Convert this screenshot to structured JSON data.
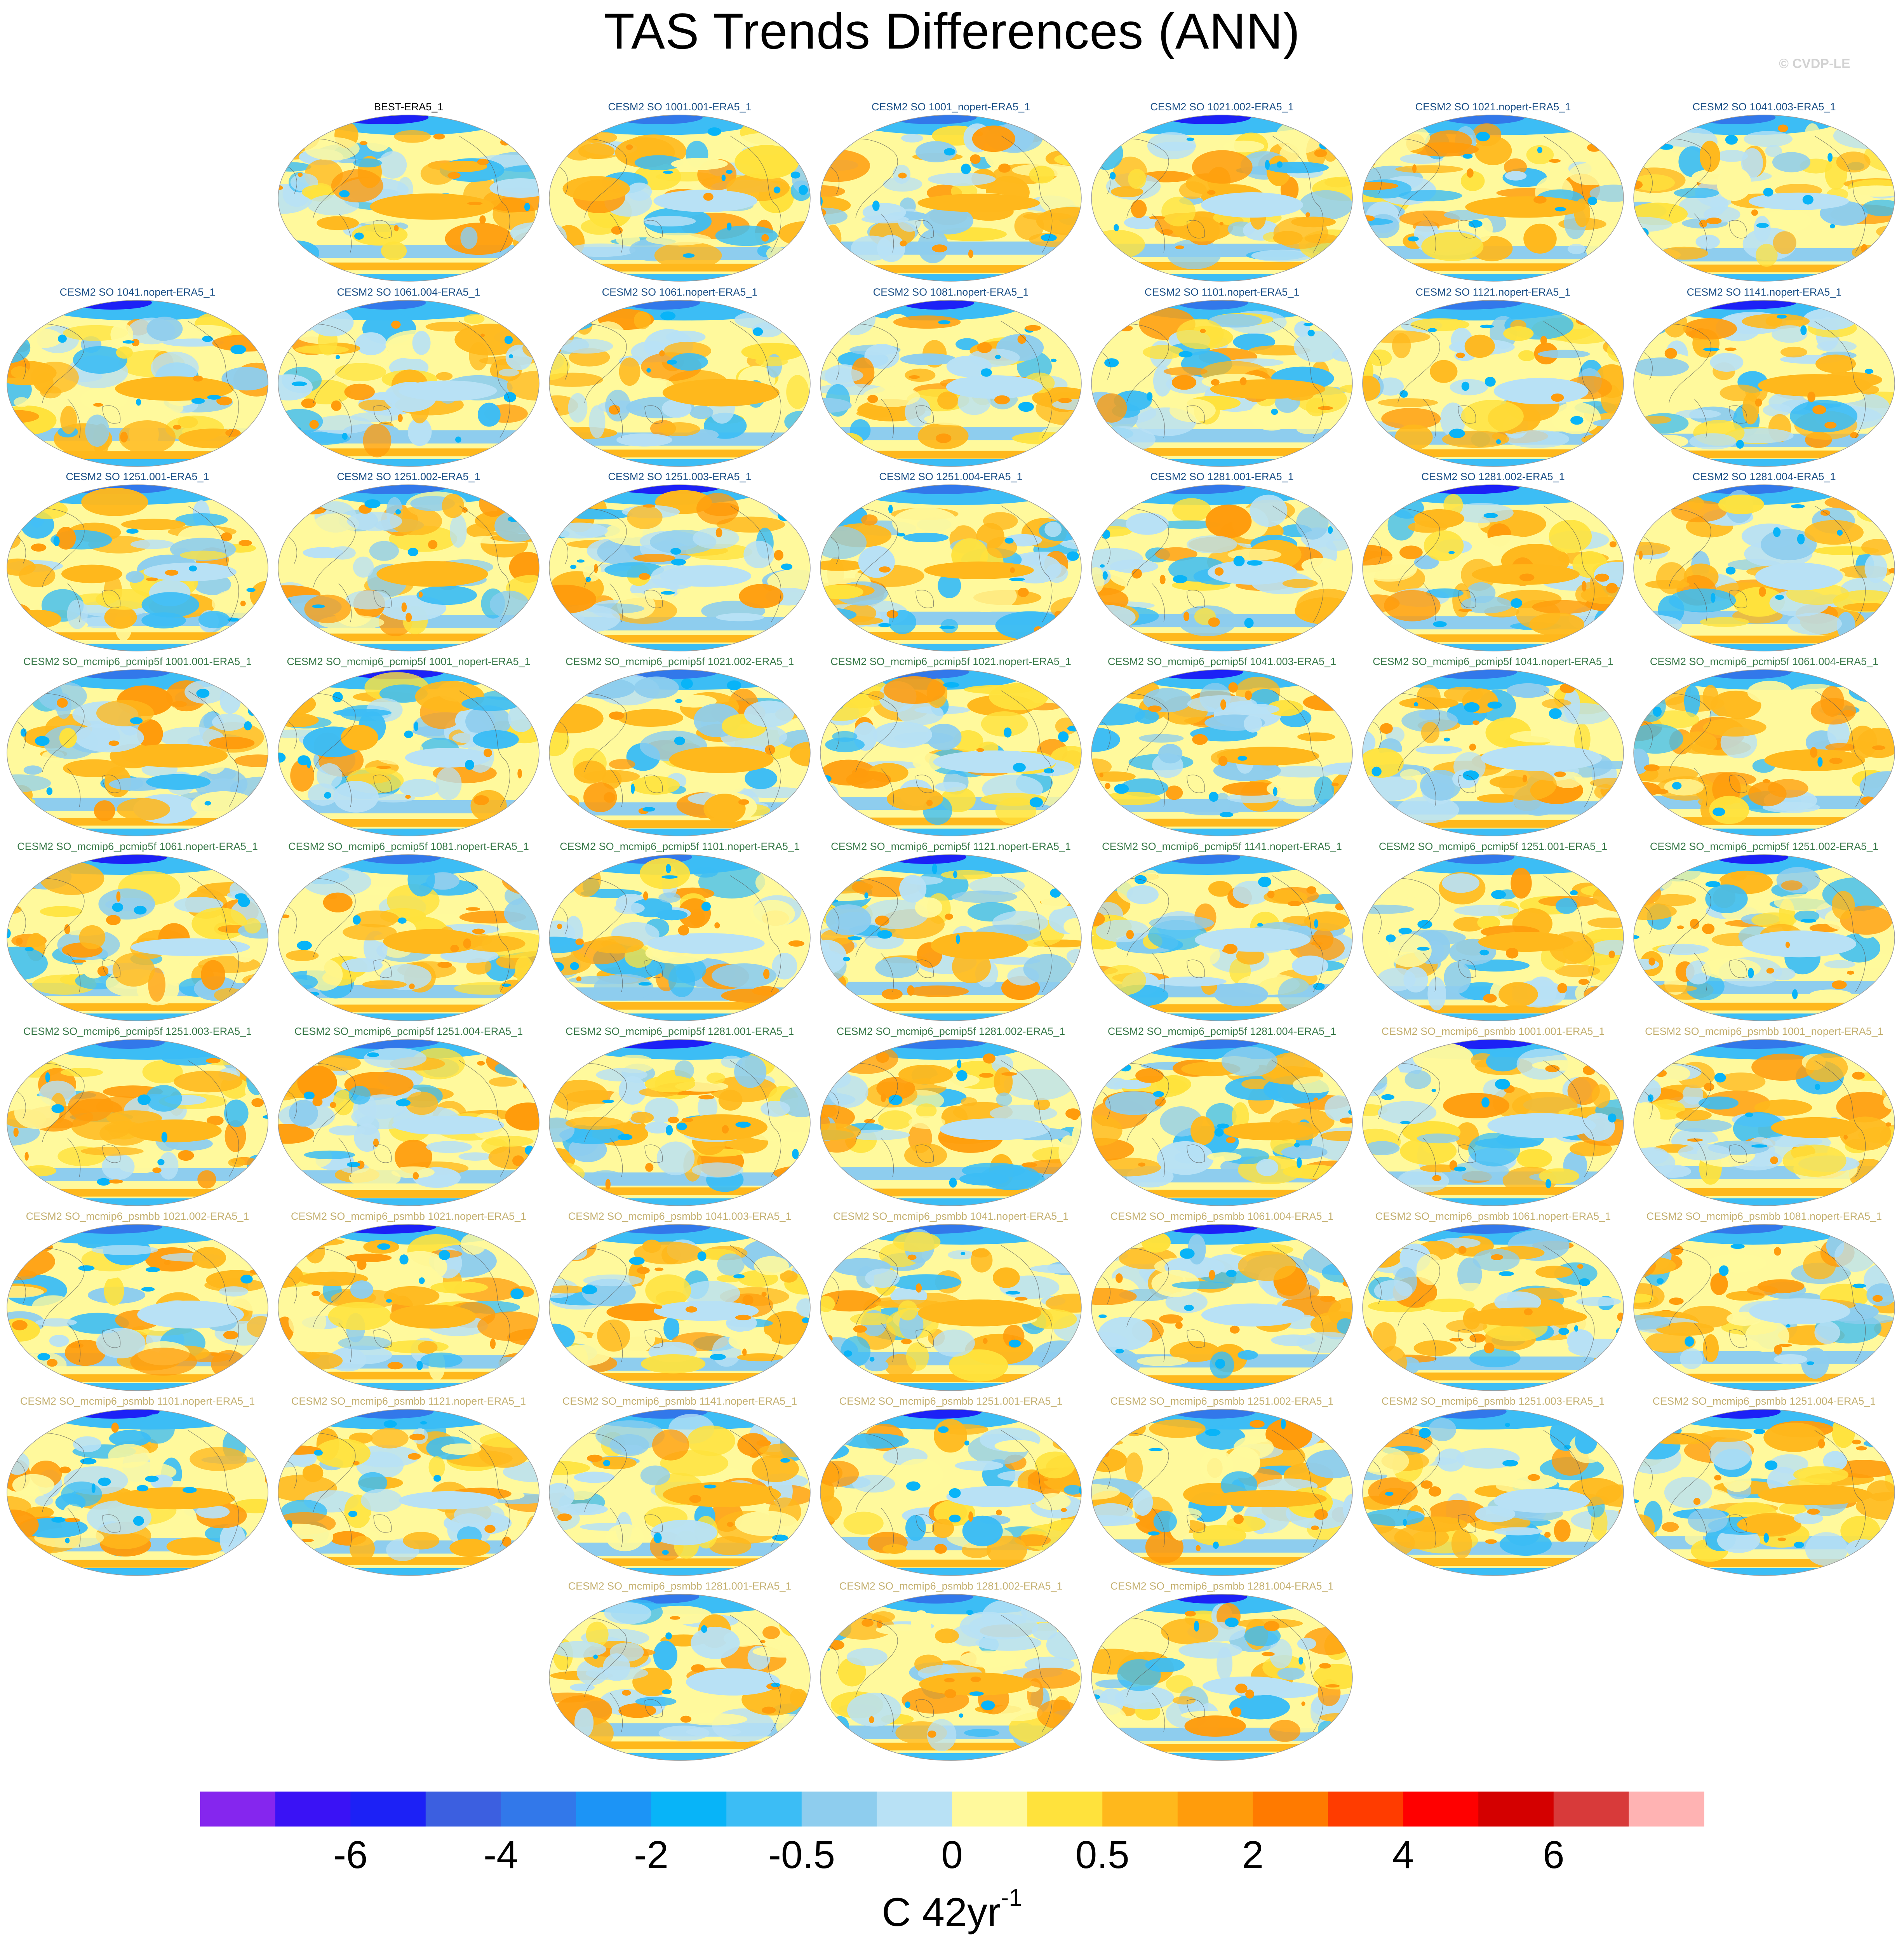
{
  "figure": {
    "title": "TAS Trends Differences (ANN)",
    "credit": "© CVDP-LE"
  },
  "chart_data": {
    "type": "heatmap",
    "description_kind": "small-multiple global map panels of surface air temperature trend differences",
    "title": "TAS Trends Differences (ANN)",
    "variable": "TAS",
    "season": "ANN",
    "projection": "robinson",
    "colorbar": {
      "units_main": "C 42yr",
      "units_exponent": "-1",
      "tick_labels": [
        "-6",
        "-4",
        "-2",
        "-0.5",
        "0",
        "0.5",
        "2",
        "4",
        "6"
      ],
      "levels": [
        -8,
        -7,
        -6,
        -5,
        -4,
        -3,
        -2,
        -1,
        -0.5,
        -0.25,
        0,
        0.25,
        0.5,
        1,
        2,
        3,
        4,
        5,
        6,
        7,
        8
      ],
      "colors": [
        "#8526ee",
        "#3a12f5",
        "#1c21f6",
        "#3c5fe0",
        "#3278ea",
        "#1c94f6",
        "#08b4f8",
        "#3cbdf5",
        "#8ecdee",
        "#b8e1f5",
        "#fff99c",
        "#ffe23c",
        "#ffb81c",
        "#ff9c0c",
        "#ff7a00",
        "#ff3c00",
        "#ff0000",
        "#d40000",
        "#d83a3a",
        "#ffb3b3"
      ]
    },
    "panel_groups": [
      {
        "name": "BEST",
        "title_color": "#000000"
      },
      {
        "name": "CESM2 SO",
        "title_color": "#1a4f86"
      },
      {
        "name": "CESM2 SO_mcmip6_pcmip5f",
        "title_color": "#3a7a4a"
      },
      {
        "name": "CESM2 SO_mcmip6_psmbb",
        "title_color": "#c4b070"
      }
    ],
    "panels": [
      {
        "title": "BEST-ERA5_1",
        "group": 0
      },
      {
        "title": "CESM2 SO 1001.001-ERA5_1",
        "group": 1
      },
      {
        "title": "CESM2 SO 1001_nopert-ERA5_1",
        "group": 1
      },
      {
        "title": "CESM2 SO 1021.002-ERA5_1",
        "group": 1
      },
      {
        "title": "CESM2 SO 1021.nopert-ERA5_1",
        "group": 1
      },
      {
        "title": "CESM2 SO 1041.003-ERA5_1",
        "group": 1
      },
      {
        "title": "CESM2 SO 1041.nopert-ERA5_1",
        "group": 1
      },
      {
        "title": "CESM2 SO 1061.004-ERA5_1",
        "group": 1
      },
      {
        "title": "CESM2 SO 1061.nopert-ERA5_1",
        "group": 1
      },
      {
        "title": "CESM2 SO 1081.nopert-ERA5_1",
        "group": 1
      },
      {
        "title": "CESM2 SO 1101.nopert-ERA5_1",
        "group": 1
      },
      {
        "title": "CESM2 SO 1121.nopert-ERA5_1",
        "group": 1
      },
      {
        "title": "CESM2 SO 1141.nopert-ERA5_1",
        "group": 1
      },
      {
        "title": "CESM2 SO 1251.001-ERA5_1",
        "group": 1
      },
      {
        "title": "CESM2 SO 1251.002-ERA5_1",
        "group": 1
      },
      {
        "title": "CESM2 SO 1251.003-ERA5_1",
        "group": 1
      },
      {
        "title": "CESM2 SO 1251.004-ERA5_1",
        "group": 1
      },
      {
        "title": "CESM2 SO 1281.001-ERA5_1",
        "group": 1
      },
      {
        "title": "CESM2 SO 1281.002-ERA5_1",
        "group": 1
      },
      {
        "title": "CESM2 SO 1281.004-ERA5_1",
        "group": 1
      },
      {
        "title": "CESM2 SO_mcmip6_pcmip5f 1001.001-ERA5_1",
        "group": 2
      },
      {
        "title": "CESM2 SO_mcmip6_pcmip5f 1001_nopert-ERA5_1",
        "group": 2
      },
      {
        "title": "CESM2 SO_mcmip6_pcmip5f 1021.002-ERA5_1",
        "group": 2
      },
      {
        "title": "CESM2 SO_mcmip6_pcmip5f 1021.nopert-ERA5_1",
        "group": 2
      },
      {
        "title": "CESM2 SO_mcmip6_pcmip5f 1041.003-ERA5_1",
        "group": 2
      },
      {
        "title": "CESM2 SO_mcmip6_pcmip5f 1041.nopert-ERA5_1",
        "group": 2
      },
      {
        "title": "CESM2 SO_mcmip6_pcmip5f 1061.004-ERA5_1",
        "group": 2
      },
      {
        "title": "CESM2 SO_mcmip6_pcmip5f 1061.nopert-ERA5_1",
        "group": 2
      },
      {
        "title": "CESM2 SO_mcmip6_pcmip5f 1081.nopert-ERA5_1",
        "group": 2
      },
      {
        "title": "CESM2 SO_mcmip6_pcmip5f 1101.nopert-ERA5_1",
        "group": 2
      },
      {
        "title": "CESM2 SO_mcmip6_pcmip5f 1121.nopert-ERA5_1",
        "group": 2
      },
      {
        "title": "CESM2 SO_mcmip6_pcmip5f 1141.nopert-ERA5_1",
        "group": 2
      },
      {
        "title": "CESM2 SO_mcmip6_pcmip5f 1251.001-ERA5_1",
        "group": 2
      },
      {
        "title": "CESM2 SO_mcmip6_pcmip5f 1251.002-ERA5_1",
        "group": 2
      },
      {
        "title": "CESM2 SO_mcmip6_pcmip5f 1251.003-ERA5_1",
        "group": 2
      },
      {
        "title": "CESM2 SO_mcmip6_pcmip5f 1251.004-ERA5_1",
        "group": 2
      },
      {
        "title": "CESM2 SO_mcmip6_pcmip5f 1281.001-ERA5_1",
        "group": 2
      },
      {
        "title": "CESM2 SO_mcmip6_pcmip5f 1281.002-ERA5_1",
        "group": 2
      },
      {
        "title": "CESM2 SO_mcmip6_pcmip5f 1281.004-ERA5_1",
        "group": 2
      },
      {
        "title": "CESM2 SO_mcmip6_psmbb 1001.001-ERA5_1",
        "group": 3
      },
      {
        "title": "CESM2 SO_mcmip6_psmbb 1001_nopert-ERA5_1",
        "group": 3
      },
      {
        "title": "CESM2 SO_mcmip6_psmbb 1021.002-ERA5_1",
        "group": 3
      },
      {
        "title": "CESM2 SO_mcmip6_psmbb 1021.nopert-ERA5_1",
        "group": 3
      },
      {
        "title": "CESM2 SO_mcmip6_psmbb 1041.003-ERA5_1",
        "group": 3
      },
      {
        "title": "CESM2 SO_mcmip6_psmbb 1041.nopert-ERA5_1",
        "group": 3
      },
      {
        "title": "CESM2 SO_mcmip6_psmbb 1061.004-ERA5_1",
        "group": 3
      },
      {
        "title": "CESM2 SO_mcmip6_psmbb 1061.nopert-ERA5_1",
        "group": 3
      },
      {
        "title": "CESM2 SO_mcmip6_psmbb 1081.nopert-ERA5_1",
        "group": 3
      },
      {
        "title": "CESM2 SO_mcmip6_psmbb 1101.nopert-ERA5_1",
        "group": 3
      },
      {
        "title": "CESM2 SO_mcmip6_psmbb 1121.nopert-ERA5_1",
        "group": 3
      },
      {
        "title": "CESM2 SO_mcmip6_psmbb 1141.nopert-ERA5_1",
        "group": 3
      },
      {
        "title": "CESM2 SO_mcmip6_psmbb 1251.001-ERA5_1",
        "group": 3
      },
      {
        "title": "CESM2 SO_mcmip6_psmbb 1251.002-ERA5_1",
        "group": 3
      },
      {
        "title": "CESM2 SO_mcmip6_psmbb 1251.003-ERA5_1",
        "group": 3
      },
      {
        "title": "CESM2 SO_mcmip6_psmbb 1251.004-ERA5_1",
        "group": 3
      },
      {
        "title": "CESM2 SO_mcmip6_psmbb 1281.001-ERA5_1",
        "group": 3
      },
      {
        "title": "CESM2 SO_mcmip6_psmbb 1281.002-ERA5_1",
        "group": 3
      },
      {
        "title": "CESM2 SO_mcmip6_psmbb 1281.004-ERA5_1",
        "group": 3
      }
    ]
  }
}
